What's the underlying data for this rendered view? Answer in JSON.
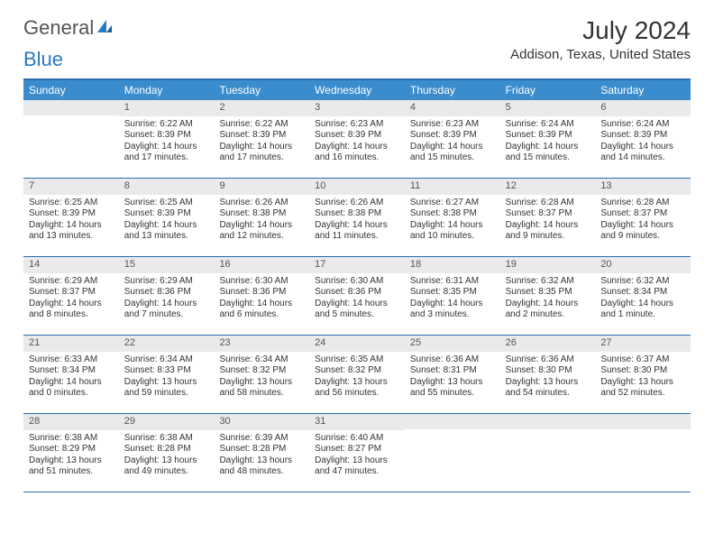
{
  "logo": {
    "text1": "General",
    "text2": "Blue"
  },
  "title": "July 2024",
  "location": "Addison, Texas, United States",
  "colors": {
    "header_bg": "#3b8ccc",
    "rule": "#2a6db0",
    "daynum_bg": "#e9eaeb",
    "text": "#333333"
  },
  "dow": [
    "Sunday",
    "Monday",
    "Tuesday",
    "Wednesday",
    "Thursday",
    "Friday",
    "Saturday"
  ],
  "weeks": [
    [
      {
        "n": "",
        "sr": "",
        "ss": "",
        "dl": ""
      },
      {
        "n": "1",
        "sr": "Sunrise: 6:22 AM",
        "ss": "Sunset: 8:39 PM",
        "dl": "Daylight: 14 hours and 17 minutes."
      },
      {
        "n": "2",
        "sr": "Sunrise: 6:22 AM",
        "ss": "Sunset: 8:39 PM",
        "dl": "Daylight: 14 hours and 17 minutes."
      },
      {
        "n": "3",
        "sr": "Sunrise: 6:23 AM",
        "ss": "Sunset: 8:39 PM",
        "dl": "Daylight: 14 hours and 16 minutes."
      },
      {
        "n": "4",
        "sr": "Sunrise: 6:23 AM",
        "ss": "Sunset: 8:39 PM",
        "dl": "Daylight: 14 hours and 15 minutes."
      },
      {
        "n": "5",
        "sr": "Sunrise: 6:24 AM",
        "ss": "Sunset: 8:39 PM",
        "dl": "Daylight: 14 hours and 15 minutes."
      },
      {
        "n": "6",
        "sr": "Sunrise: 6:24 AM",
        "ss": "Sunset: 8:39 PM",
        "dl": "Daylight: 14 hours and 14 minutes."
      }
    ],
    [
      {
        "n": "7",
        "sr": "Sunrise: 6:25 AM",
        "ss": "Sunset: 8:39 PM",
        "dl": "Daylight: 14 hours and 13 minutes."
      },
      {
        "n": "8",
        "sr": "Sunrise: 6:25 AM",
        "ss": "Sunset: 8:39 PM",
        "dl": "Daylight: 14 hours and 13 minutes."
      },
      {
        "n": "9",
        "sr": "Sunrise: 6:26 AM",
        "ss": "Sunset: 8:38 PM",
        "dl": "Daylight: 14 hours and 12 minutes."
      },
      {
        "n": "10",
        "sr": "Sunrise: 6:26 AM",
        "ss": "Sunset: 8:38 PM",
        "dl": "Daylight: 14 hours and 11 minutes."
      },
      {
        "n": "11",
        "sr": "Sunrise: 6:27 AM",
        "ss": "Sunset: 8:38 PM",
        "dl": "Daylight: 14 hours and 10 minutes."
      },
      {
        "n": "12",
        "sr": "Sunrise: 6:28 AM",
        "ss": "Sunset: 8:37 PM",
        "dl": "Daylight: 14 hours and 9 minutes."
      },
      {
        "n": "13",
        "sr": "Sunrise: 6:28 AM",
        "ss": "Sunset: 8:37 PM",
        "dl": "Daylight: 14 hours and 9 minutes."
      }
    ],
    [
      {
        "n": "14",
        "sr": "Sunrise: 6:29 AM",
        "ss": "Sunset: 8:37 PM",
        "dl": "Daylight: 14 hours and 8 minutes."
      },
      {
        "n": "15",
        "sr": "Sunrise: 6:29 AM",
        "ss": "Sunset: 8:36 PM",
        "dl": "Daylight: 14 hours and 7 minutes."
      },
      {
        "n": "16",
        "sr": "Sunrise: 6:30 AM",
        "ss": "Sunset: 8:36 PM",
        "dl": "Daylight: 14 hours and 6 minutes."
      },
      {
        "n": "17",
        "sr": "Sunrise: 6:30 AM",
        "ss": "Sunset: 8:36 PM",
        "dl": "Daylight: 14 hours and 5 minutes."
      },
      {
        "n": "18",
        "sr": "Sunrise: 6:31 AM",
        "ss": "Sunset: 8:35 PM",
        "dl": "Daylight: 14 hours and 3 minutes."
      },
      {
        "n": "19",
        "sr": "Sunrise: 6:32 AM",
        "ss": "Sunset: 8:35 PM",
        "dl": "Daylight: 14 hours and 2 minutes."
      },
      {
        "n": "20",
        "sr": "Sunrise: 6:32 AM",
        "ss": "Sunset: 8:34 PM",
        "dl": "Daylight: 14 hours and 1 minute."
      }
    ],
    [
      {
        "n": "21",
        "sr": "Sunrise: 6:33 AM",
        "ss": "Sunset: 8:34 PM",
        "dl": "Daylight: 14 hours and 0 minutes."
      },
      {
        "n": "22",
        "sr": "Sunrise: 6:34 AM",
        "ss": "Sunset: 8:33 PM",
        "dl": "Daylight: 13 hours and 59 minutes."
      },
      {
        "n": "23",
        "sr": "Sunrise: 6:34 AM",
        "ss": "Sunset: 8:32 PM",
        "dl": "Daylight: 13 hours and 58 minutes."
      },
      {
        "n": "24",
        "sr": "Sunrise: 6:35 AM",
        "ss": "Sunset: 8:32 PM",
        "dl": "Daylight: 13 hours and 56 minutes."
      },
      {
        "n": "25",
        "sr": "Sunrise: 6:36 AM",
        "ss": "Sunset: 8:31 PM",
        "dl": "Daylight: 13 hours and 55 minutes."
      },
      {
        "n": "26",
        "sr": "Sunrise: 6:36 AM",
        "ss": "Sunset: 8:30 PM",
        "dl": "Daylight: 13 hours and 54 minutes."
      },
      {
        "n": "27",
        "sr": "Sunrise: 6:37 AM",
        "ss": "Sunset: 8:30 PM",
        "dl": "Daylight: 13 hours and 52 minutes."
      }
    ],
    [
      {
        "n": "28",
        "sr": "Sunrise: 6:38 AM",
        "ss": "Sunset: 8:29 PM",
        "dl": "Daylight: 13 hours and 51 minutes."
      },
      {
        "n": "29",
        "sr": "Sunrise: 6:38 AM",
        "ss": "Sunset: 8:28 PM",
        "dl": "Daylight: 13 hours and 49 minutes."
      },
      {
        "n": "30",
        "sr": "Sunrise: 6:39 AM",
        "ss": "Sunset: 8:28 PM",
        "dl": "Daylight: 13 hours and 48 minutes."
      },
      {
        "n": "31",
        "sr": "Sunrise: 6:40 AM",
        "ss": "Sunset: 8:27 PM",
        "dl": "Daylight: 13 hours and 47 minutes."
      },
      {
        "n": "",
        "sr": "",
        "ss": "",
        "dl": ""
      },
      {
        "n": "",
        "sr": "",
        "ss": "",
        "dl": ""
      },
      {
        "n": "",
        "sr": "",
        "ss": "",
        "dl": ""
      }
    ]
  ]
}
